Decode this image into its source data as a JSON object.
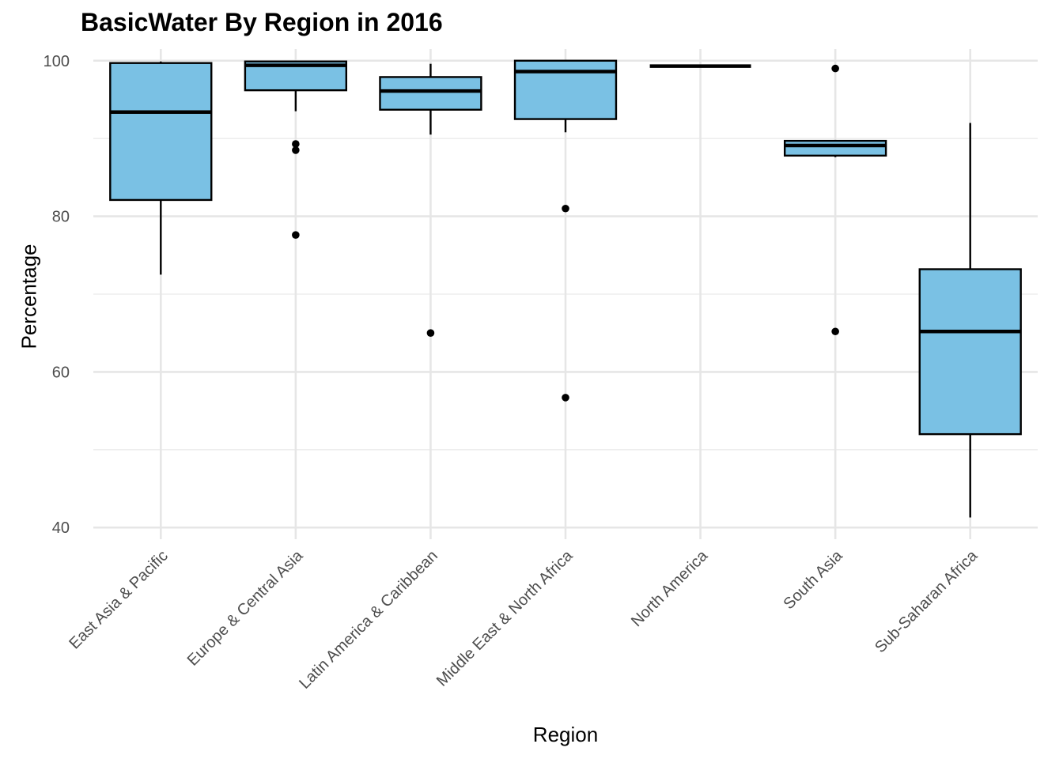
{
  "chart_data": {
    "type": "boxplot",
    "title": "BasicWater By Region in 2016",
    "xlabel": "Region",
    "ylabel": "Percentage",
    "ylim": [
      38.5,
      101.5
    ],
    "yticks": [
      40,
      60,
      80,
      100
    ],
    "grid": true,
    "box_color": "#7AC1E4",
    "categories": [
      "East Asia & Pacific",
      "Europe & Central Asia",
      "Latin America & Caribbean",
      "Middle East & North Africa",
      "North America",
      "South Asia",
      "Sub-Saharan Africa"
    ],
    "boxes": [
      {
        "whisker_low": 72.5,
        "q1": 82.1,
        "median": 93.4,
        "q3": 99.7,
        "whisker_high": 99.9,
        "outliers": []
      },
      {
        "whisker_low": 93.5,
        "q1": 96.2,
        "median": 99.4,
        "q3": 99.9,
        "whisker_high": 100,
        "outliers": [
          89.3,
          88.5,
          77.6
        ]
      },
      {
        "whisker_low": 90.5,
        "q1": 93.7,
        "median": 96.1,
        "q3": 97.9,
        "whisker_high": 99.6,
        "outliers": [
          65.0
        ]
      },
      {
        "whisker_low": 90.8,
        "q1": 92.5,
        "median": 98.6,
        "q3": 100,
        "whisker_high": 100,
        "outliers": [
          81.0,
          56.7
        ]
      },
      {
        "whisker_low": 99.3,
        "q1": 99.3,
        "median": 99.3,
        "q3": 99.3,
        "whisker_high": 99.3,
        "outliers": []
      },
      {
        "whisker_low": 87.6,
        "q1": 87.8,
        "median": 89.1,
        "q3": 89.7,
        "whisker_high": 89.7,
        "outliers": [
          99.0,
          65.2
        ]
      },
      {
        "whisker_low": 41.3,
        "q1": 52.0,
        "median": 65.2,
        "q3": 73.2,
        "whisker_high": 92.0,
        "outliers": []
      }
    ]
  }
}
